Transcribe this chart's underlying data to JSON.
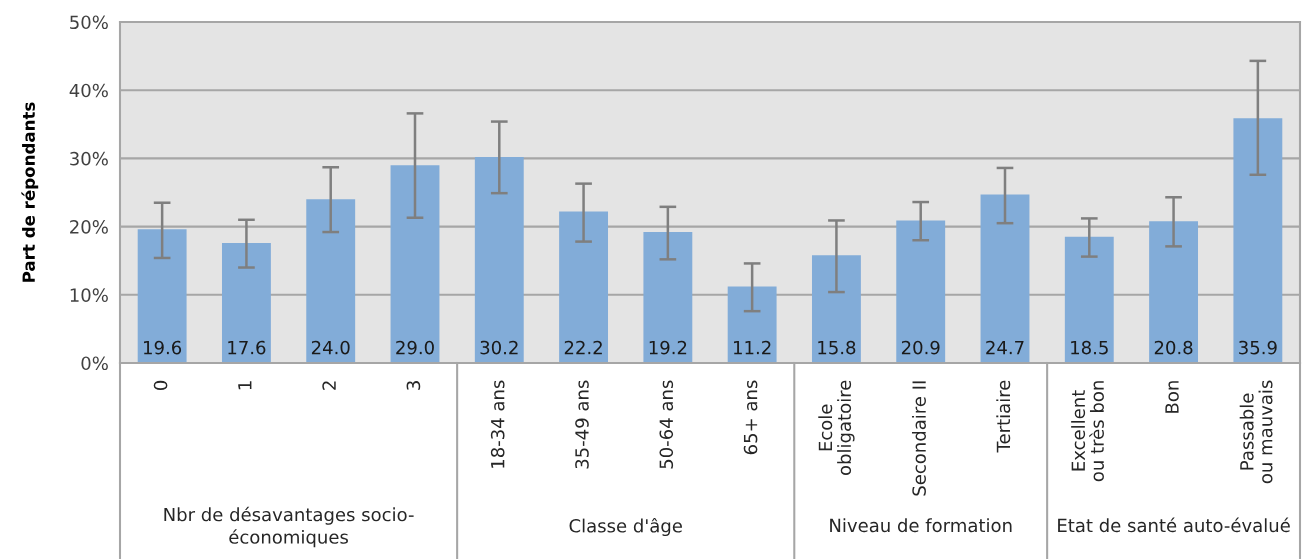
{
  "chart_data": {
    "type": "bar",
    "ylabel": "Part de répondants",
    "categories": [
      "0",
      "1",
      "2",
      "3",
      "18-34 ans",
      "35-49 ans",
      "50-64 ans",
      "65+ ans",
      "Ecole\nobligatoire",
      "Secondaire II",
      "Tertiaire",
      "Excellent\nou très bon",
      "Bon",
      "Passable\nou mauvais"
    ],
    "values": [
      19.6,
      17.6,
      24.0,
      29.0,
      30.2,
      22.2,
      19.2,
      11.2,
      15.8,
      20.9,
      24.7,
      18.5,
      20.8,
      35.9
    ],
    "value_labels": [
      "19.6",
      "17.6",
      "24.0",
      "29.0",
      "30.2",
      "22.2",
      "19.2",
      "11.2",
      "15.8",
      "20.9",
      "24.7",
      "18.5",
      "20.8",
      "35.9"
    ],
    "errors": [
      [
        15.4,
        23.5
      ],
      [
        14.0,
        21.0
      ],
      [
        19.2,
        28.7
      ],
      [
        21.3,
        36.6
      ],
      [
        24.9,
        35.4
      ],
      [
        17.8,
        26.3
      ],
      [
        15.2,
        22.9
      ],
      [
        7.6,
        14.6
      ],
      [
        10.4,
        20.9
      ],
      [
        18.0,
        23.6
      ],
      [
        20.5,
        28.6
      ],
      [
        15.6,
        21.2
      ],
      [
        17.1,
        24.3
      ],
      [
        27.6,
        44.3
      ]
    ],
    "color": "#82acd8",
    "ylim": [
      0,
      50
    ],
    "yticks": [
      {
        "value": 0,
        "label": "0%"
      },
      {
        "value": 10,
        "label": "10%"
      },
      {
        "value": 20,
        "label": "20%"
      },
      {
        "value": 30,
        "label": "30%"
      },
      {
        "value": 40,
        "label": "40%"
      },
      {
        "value": 50,
        "label": "50%"
      }
    ],
    "grid": "y",
    "legend": false,
    "annotations": [
      "Nbr de désavantages socio-\néconomiques",
      "Classe d'âge",
      "Niveau de formation",
      "Etat de santé auto-évalué"
    ]
  }
}
